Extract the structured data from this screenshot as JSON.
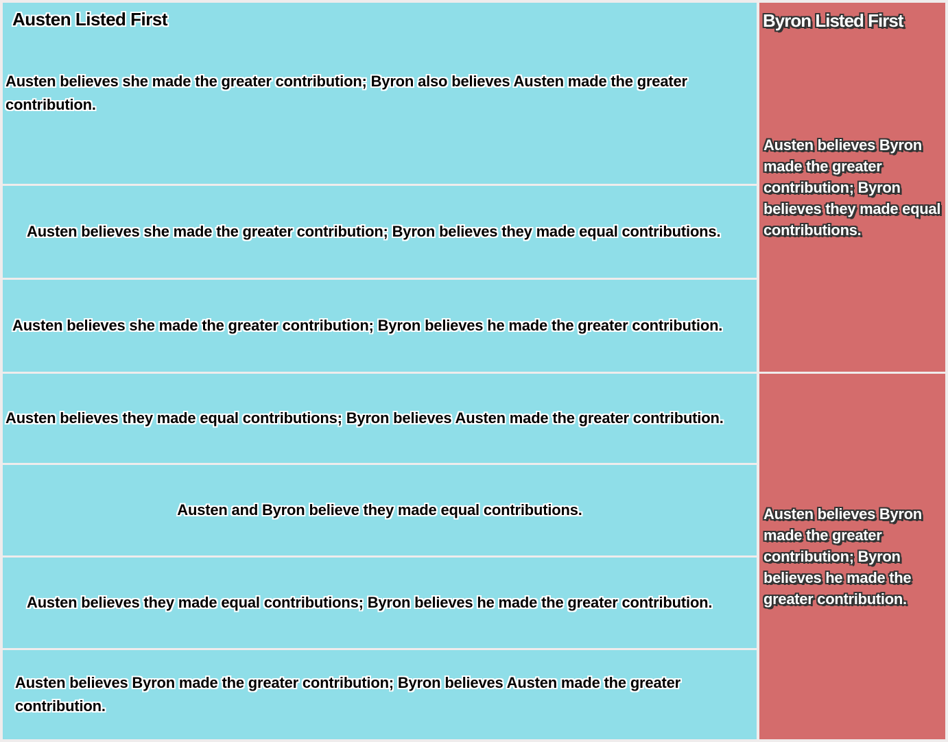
{
  "colors": {
    "austen_bg": "#8FDEE8",
    "byron_bg": "#D46C6C",
    "frame_bg": "#EFECEC",
    "text_dark": "#000000",
    "text_light": "#FFFFFF"
  },
  "chart_data": {
    "type": "mosaic",
    "title": "",
    "legend": "none",
    "grid": "off",
    "columns": [
      {
        "label": "Austen Listed First",
        "width_fraction": 0.8,
        "color": "#8FDEE8",
        "segments": [
          {
            "label": "Austen believes she made the greater contribution; Byron also believes Austen made the greater contribution.",
            "height_fraction": 0.25
          },
          {
            "label": "Austen believes she made the greater contribution; Byron believes they made equal contributions.",
            "height_fraction": 0.125
          },
          {
            "label": "Austen believes she made the greater contribution; Byron believes he made the greater contribution.",
            "height_fraction": 0.125
          },
          {
            "label": "Austen believes they made equal contributions; Byron believes Austen made the greater contribution.",
            "height_fraction": 0.125
          },
          {
            "label": "Austen and Byron believe they made equal contributions.",
            "height_fraction": 0.125
          },
          {
            "label": "Austen believes they made equal contributions; Byron believes he made the greater contribution.",
            "height_fraction": 0.125
          },
          {
            "label": "Austen believes Byron made the greater contribution; Byron believes Austen made the greater contribution.",
            "height_fraction": 0.125
          }
        ]
      },
      {
        "label": "Byron Listed First",
        "width_fraction": 0.2,
        "color": "#D46C6C",
        "segments": [
          {
            "label": "Austen believes Byron made the greater contribution; Byron believes they made equal contributions.",
            "height_fraction": 0.5
          },
          {
            "label": "Austen believes Byron made the greater contribution; Byron believes he made the greater contribution.",
            "height_fraction": 0.5
          }
        ]
      }
    ]
  }
}
